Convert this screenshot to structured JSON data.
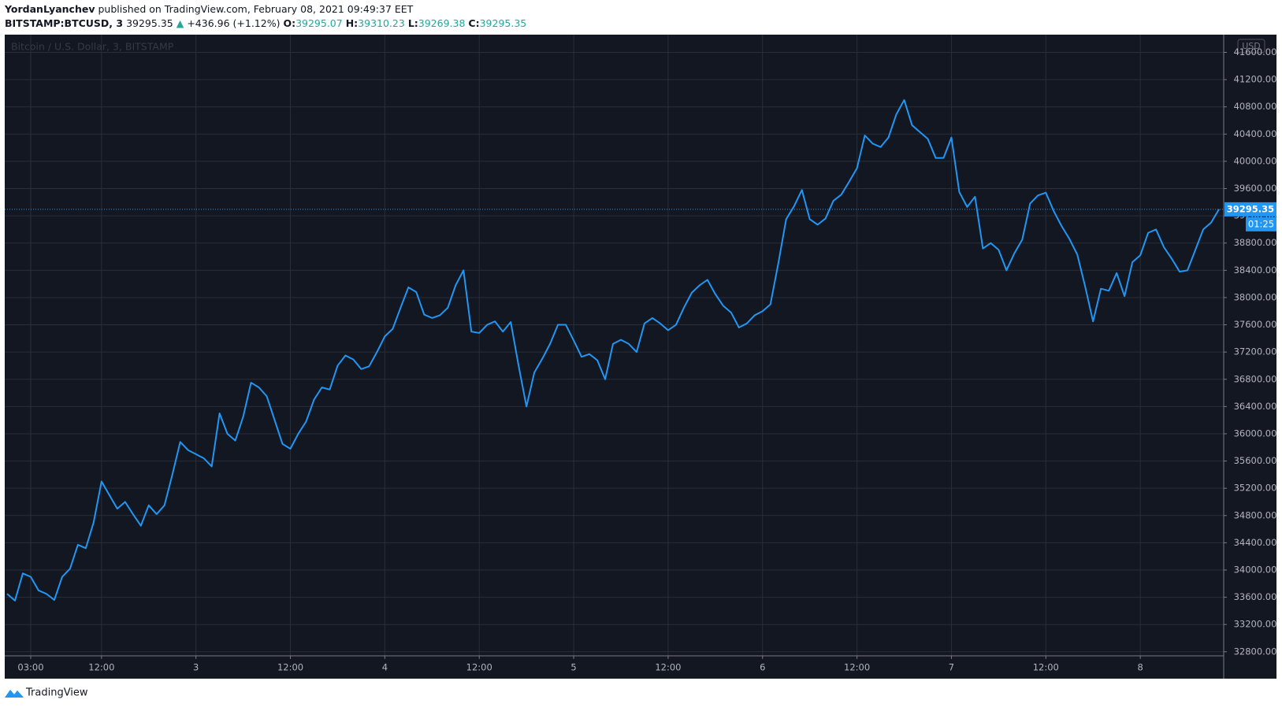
{
  "header": {
    "author": "YordanLyanchev",
    "published": "published on TradingView.com, February 08, 2021 09:49:37 EET",
    "symbol": "BITSTAMP:BTCUSD, 3",
    "price": "39295.35",
    "arrow": "▲",
    "change": "+436.96 (+1.12%)",
    "o_label": "O:",
    "o": "39295.07",
    "h_label": "H:",
    "h": "39310.23",
    "l_label": "L:",
    "l": "39269.38",
    "c_label": "C:",
    "c": "39295.35"
  },
  "footer": {
    "brand": "TradingView"
  },
  "chart_data": {
    "type": "line",
    "title": "Bitcoin / U.S. Dollar, 3, BITSTAMP",
    "currency": "USD",
    "countdown": "01:25",
    "grid": true,
    "categories": [
      null,
      null,
      null,
      "03:00",
      null,
      null,
      null,
      null,
      null,
      null,
      null,
      null,
      "12:00",
      null,
      null,
      null,
      null,
      null,
      null,
      null,
      null,
      null,
      null,
      null,
      "3",
      null,
      null,
      null,
      null,
      null,
      null,
      null,
      null,
      null,
      null,
      null,
      "12:00",
      null,
      null,
      null,
      null,
      null,
      null,
      null,
      null,
      null,
      null,
      null,
      "4",
      null,
      null,
      null,
      null,
      null,
      null,
      null,
      null,
      null,
      null,
      null,
      "12:00",
      null,
      null,
      null,
      null,
      null,
      null,
      null,
      null,
      null,
      null,
      null,
      "5",
      null,
      null,
      null,
      null,
      null,
      null,
      null,
      null,
      null,
      null,
      null,
      "12:00",
      null,
      null,
      null,
      null,
      null,
      null,
      null,
      null,
      null,
      null,
      null,
      "6",
      null,
      null,
      null,
      null,
      null,
      null,
      null,
      null,
      null,
      null,
      null,
      "12:00",
      null,
      null,
      null,
      null,
      null,
      null,
      null,
      null,
      null,
      null,
      null,
      "7",
      null,
      null,
      null,
      null,
      null,
      null,
      null,
      null,
      null,
      null,
      null,
      "12:00",
      null,
      null,
      null,
      null,
      null,
      null,
      null,
      null,
      null,
      null,
      null,
      "8",
      null,
      null,
      null,
      null,
      null,
      null,
      null,
      null,
      null,
      null
    ],
    "series": [
      {
        "color": "#2196f3",
        "values": [
          33650,
          33550,
          33950,
          33900,
          33700,
          33650,
          33560,
          33900,
          34020,
          34370,
          34320,
          34700,
          35300,
          35100,
          34900,
          35000,
          34820,
          34650,
          34950,
          34820,
          34950,
          35400,
          35880,
          35760,
          35700,
          35640,
          35520,
          36300,
          36000,
          35900,
          36250,
          36750,
          36680,
          36550,
          36200,
          35850,
          35780,
          36000,
          36180,
          36500,
          36680,
          36650,
          37000,
          37150,
          37090,
          36950,
          36990,
          37200,
          37430,
          37540,
          37850,
          38150,
          38080,
          37750,
          37700,
          37740,
          37850,
          38180,
          38400,
          37500,
          37480,
          37600,
          37650,
          37500,
          37640,
          37000,
          36400,
          36900,
          37100,
          37320,
          37600,
          37600,
          37370,
          37130,
          37170,
          37080,
          36800,
          37320,
          37380,
          37320,
          37200,
          37620,
          37700,
          37620,
          37520,
          37600,
          37850,
          38070,
          38180,
          38260,
          38050,
          37880,
          37780,
          37560,
          37620,
          37740,
          37800,
          37900,
          38500,
          39150,
          39340,
          39580,
          39150,
          39070,
          39160,
          39420,
          39510,
          39700,
          39900,
          40380,
          40260,
          40210,
          40350,
          40690,
          40900,
          40530,
          40430,
          40330,
          40050,
          40050,
          40350,
          39550,
          39330,
          39480,
          38720,
          38800,
          38700,
          38400,
          38650,
          38850,
          39380,
          39500,
          39540,
          39270,
          39050,
          38860,
          38630,
          38160,
          37650,
          38130,
          38100,
          38360,
          38020,
          38520,
          38620,
          38950,
          39000,
          38740,
          38570,
          38380,
          38400,
          38700,
          39000,
          39100,
          39295.35
        ]
      }
    ],
    "ylim": [
      32740,
      41860
    ],
    "yticks": [
      {
        "value": 32800,
        "label": "32800.00"
      },
      {
        "value": 33200,
        "label": "33200.00"
      },
      {
        "value": 33600,
        "label": "33600.00"
      },
      {
        "value": 34000,
        "label": "34000.00"
      },
      {
        "value": 34400,
        "label": "34400.00"
      },
      {
        "value": 34800,
        "label": "34800.00"
      },
      {
        "value": 35200,
        "label": "35200.00"
      },
      {
        "value": 35600,
        "label": "35600.00"
      },
      {
        "value": 36000,
        "label": "36000.00"
      },
      {
        "value": 36400,
        "label": "36400.00"
      },
      {
        "value": 36800,
        "label": "36800.00"
      },
      {
        "value": 37200,
        "label": "37200.00"
      },
      {
        "value": 37600,
        "label": "37600.00"
      },
      {
        "value": 38000,
        "label": "38000.00"
      },
      {
        "value": 38400,
        "label": "38400.00"
      },
      {
        "value": 38800,
        "label": "38800.00"
      },
      {
        "value": 39200,
        "label": "39200.00"
      },
      {
        "value": 39600,
        "label": "39600.00"
      },
      {
        "value": 40000,
        "label": "40000.00"
      },
      {
        "value": 40400,
        "label": "40400.00"
      },
      {
        "value": 40800,
        "label": "40800.00"
      },
      {
        "value": 41200,
        "label": "41200.00"
      },
      {
        "value": 41600,
        "label": "41600.00"
      }
    ]
  }
}
